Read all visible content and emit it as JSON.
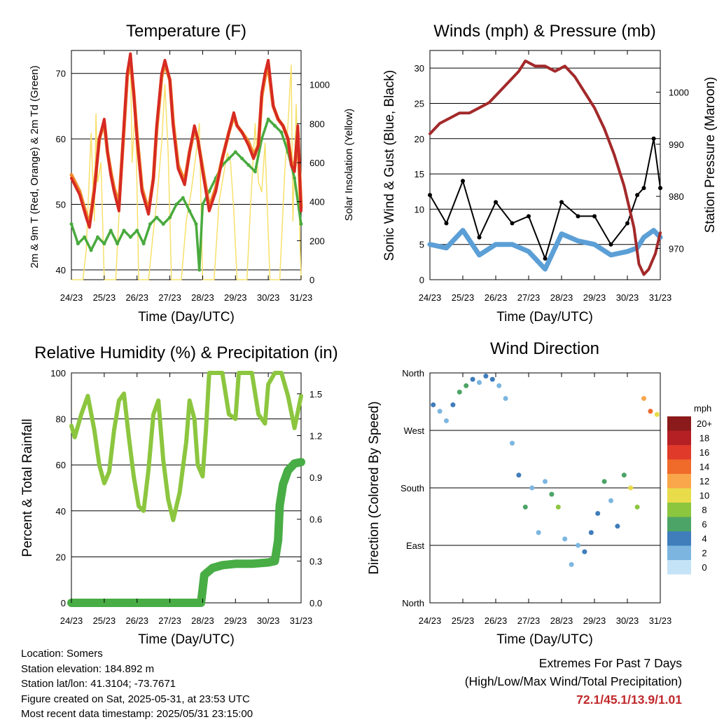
{
  "colors": {
    "temp2m": "#d62a22",
    "temp9m": "#f08a2a",
    "dewpoint": "#49aa3e",
    "solar": "#f7e06a",
    "wind": "#5b9fd6",
    "gust": "#000000",
    "pressure": "#a3292a",
    "rh": "#8cc63f",
    "precip": "#48ad45",
    "extremes": "#c0282b"
  },
  "info": {
    "location": "Location: Somers",
    "elevation": "Station elevation: 184.892 m",
    "latlon": "Station lat/lon: 41.3104; -73.7671",
    "created": "Figure created on Sat, 2025-05-31, at 23:53 UTC",
    "recent": "Most recent data timestamp: 2025/05/31 23:15:00"
  },
  "extremes": {
    "title": "Extremes For Past 7 Days",
    "subtitle": "(High/Low/Max Wind/Total Precipitation)",
    "values": "72.1/45.1/13.9/1.01"
  },
  "chart_data": [
    {
      "type": "line",
      "title": "Temperature (F)",
      "xlabel": "Time (Day/UTC)",
      "ylabel": "2m & 9m T (Red, Orange) & 2m Td (Green)",
      "y2label": "Solar Insolation (Yellow)",
      "xticks": [
        "24/23",
        "25/23",
        "26/23",
        "27/23",
        "28/23",
        "29/23",
        "30/23",
        "31/23"
      ],
      "xlim": [
        0,
        7
      ],
      "ylim": [
        38.5,
        73.5
      ],
      "yticks": [
        40,
        50,
        60,
        70
      ],
      "y2lim": [
        0,
        1175
      ],
      "y2ticks": [
        0,
        200,
        400,
        600,
        800,
        1000
      ],
      "grid": true,
      "series": [
        {
          "key": "temp2m",
          "x": [
            0,
            0.25,
            0.45,
            0.55,
            0.7,
            0.85,
            1.0,
            1.1,
            1.2,
            1.3,
            1.45,
            1.6,
            1.7,
            1.8,
            1.9,
            2.0,
            2.15,
            2.35,
            2.5,
            2.6,
            2.75,
            2.85,
            3.0,
            3.1,
            3.25,
            3.45,
            3.6,
            3.75,
            3.85,
            4.0,
            4.2,
            4.4,
            4.6,
            4.8,
            4.95,
            5.05,
            5.2,
            5.4,
            5.55,
            5.7,
            5.8,
            5.9,
            6.0,
            6.15,
            6.3,
            6.45,
            6.6,
            6.7,
            6.8,
            6.9,
            7.0
          ],
          "y": [
            54,
            51.5,
            48,
            46.5,
            52,
            60,
            63,
            58,
            54.5,
            52,
            49,
            62,
            70,
            73,
            67,
            60,
            52,
            48.5,
            54,
            62,
            70,
            72,
            69,
            62,
            55.5,
            53,
            58,
            62,
            60,
            55,
            49,
            52,
            57,
            61,
            64,
            62,
            61,
            59,
            57,
            59,
            67,
            70,
            72,
            65,
            63,
            62,
            60,
            56,
            55,
            62,
            49
          ]
        },
        {
          "key": "temp9m",
          "x": [
            0,
            0.25,
            0.45,
            0.55,
            0.7,
            0.85,
            1.0,
            1.1,
            1.2,
            1.3,
            1.45,
            1.6,
            1.7,
            1.8,
            1.9,
            2.0,
            2.15,
            2.35,
            2.5,
            2.6,
            2.75,
            2.85,
            3.0,
            3.1,
            3.25,
            3.45,
            3.6,
            3.75,
            3.85,
            4.0,
            4.2,
            4.4,
            4.6,
            4.8,
            4.95,
            5.05,
            5.2,
            5.4,
            5.55,
            5.7,
            5.8,
            5.9,
            6.0,
            6.15,
            6.3,
            6.45,
            6.6,
            6.7,
            6.8,
            6.9,
            7.0
          ],
          "y": [
            54.5,
            52,
            48.5,
            47,
            52.5,
            60,
            62.5,
            58,
            55,
            52.5,
            50,
            61.5,
            69.5,
            72,
            67,
            60.5,
            52.5,
            49,
            54,
            61.5,
            69.5,
            71.5,
            69,
            62.5,
            56,
            53.5,
            58,
            61.5,
            60,
            55.5,
            49.5,
            52.5,
            57,
            61,
            63.5,
            62,
            61,
            59.5,
            57.5,
            59,
            66.5,
            69.5,
            71,
            65,
            63,
            62,
            60,
            56.5,
            55.5,
            61,
            49.5
          ]
        },
        {
          "key": "dewpoint",
          "x": [
            0,
            0.2,
            0.4,
            0.6,
            0.8,
            1.0,
            1.2,
            1.4,
            1.6,
            1.8,
            2.0,
            2.2,
            2.4,
            2.6,
            2.8,
            3.0,
            3.2,
            3.4,
            3.6,
            3.8,
            3.9,
            4.0,
            4.2,
            4.4,
            4.6,
            4.8,
            5.0,
            5.2,
            5.4,
            5.6,
            5.8,
            6.0,
            6.2,
            6.4,
            6.6,
            6.8,
            7.0
          ],
          "y": [
            47,
            44,
            45,
            43,
            45,
            44,
            46,
            44,
            46,
            45,
            46,
            44,
            47,
            48,
            47,
            48,
            50,
            51,
            49,
            47,
            40,
            50,
            52,
            54,
            56,
            57,
            58,
            57,
            56,
            55,
            60,
            63,
            62,
            61,
            58,
            54,
            47
          ]
        },
        {
          "key": "solar",
          "x": [
            0,
            0.35,
            0.45,
            0.6,
            0.7,
            0.75,
            0.8,
            0.9,
            1.0,
            1.35,
            1.5,
            1.6,
            1.7,
            1.8,
            1.85,
            1.95,
            2.05,
            2.35,
            2.5,
            2.6,
            2.75,
            2.85,
            2.95,
            3.05,
            3.35,
            3.5,
            3.65,
            3.8,
            3.9,
            4.0,
            4.35,
            4.5,
            4.6,
            4.75,
            4.85,
            4.95,
            5.05,
            5.35,
            5.45,
            5.6,
            5.7,
            5.8,
            5.9,
            6.05,
            6.35,
            6.5,
            6.6,
            6.7,
            6.75,
            6.85,
            7.0
          ],
          "y": [
            0,
            0,
            150,
            750,
            300,
            850,
            500,
            600,
            0,
            0,
            500,
            800,
            1000,
            1150,
            600,
            900,
            0,
            0,
            250,
            400,
            700,
            1000,
            650,
            0,
            0,
            300,
            450,
            650,
            800,
            0,
            0,
            400,
            500,
            650,
            600,
            350,
            0,
            0,
            350,
            800,
            500,
            450,
            700,
            0,
            0,
            550,
            800,
            1100,
            300,
            900,
            0
          ]
        }
      ]
    },
    {
      "type": "scatter",
      "title": "Winds (mph) & Pressure (mb)",
      "xlabel": "Time (Day/UTC)",
      "ylabel": "Sonic Wind & Gust (Blue, Black)",
      "y2label": "Station Pressure (Maroon)",
      "xticks": [
        "24/23",
        "25/23",
        "26/23",
        "27/23",
        "28/23",
        "29/23",
        "30/23",
        "31/23"
      ],
      "xlim": [
        0,
        7
      ],
      "ylim": [
        0,
        32.5
      ],
      "yticks": [
        0,
        5,
        10,
        15,
        20,
        25,
        30
      ],
      "y2lim": [
        964,
        1008
      ],
      "y2ticks": [
        970,
        980,
        990,
        1000
      ],
      "grid": true,
      "series": [
        {
          "key": "wind",
          "x": [
            0,
            0.5,
            1.0,
            1.5,
            2.0,
            2.5,
            3.0,
            3.5,
            4.0,
            4.5,
            5.0,
            5.5,
            6.0,
            6.3,
            6.5,
            6.8,
            7.0
          ],
          "y": [
            5,
            4.5,
            7,
            3.5,
            5,
            5,
            4,
            1.5,
            6.5,
            5.5,
            5,
            3.5,
            4,
            4.5,
            6,
            7,
            6
          ]
        },
        {
          "key": "gust",
          "x": [
            0,
            0.5,
            1.0,
            1.5,
            2.0,
            2.5,
            3.0,
            3.5,
            4.0,
            4.5,
            5.0,
            5.5,
            6.0,
            6.3,
            6.5,
            6.8,
            7.0
          ],
          "y": [
            12,
            8,
            14,
            6,
            11,
            8,
            9,
            3,
            11,
            9,
            9,
            5,
            8,
            12,
            13,
            20,
            13
          ]
        },
        {
          "key": "pressure",
          "x": [
            0,
            0.3,
            0.6,
            0.9,
            1.2,
            1.5,
            1.8,
            2.1,
            2.4,
            2.7,
            2.9,
            3.2,
            3.5,
            3.8,
            4.1,
            4.4,
            4.7,
            5.0,
            5.3,
            5.6,
            5.9,
            6.2,
            6.35,
            6.5,
            6.65,
            6.85,
            7.0
          ],
          "y": [
            992,
            994,
            995,
            996,
            996,
            997,
            998,
            1000,
            1002,
            1004,
            1006,
            1005,
            1005,
            1004,
            1005,
            1003,
            1000,
            997,
            993,
            988,
            982,
            974,
            967,
            965,
            966,
            969,
            973
          ]
        }
      ]
    },
    {
      "type": "line",
      "title": "Relative Humidity (%) & Precipitation (in)",
      "xlabel": "Time (Day/UTC)",
      "ylabel": "Percent & Total Rainfall",
      "y2label": "",
      "xticks": [
        "24/23",
        "25/23",
        "26/23",
        "27/23",
        "28/23",
        "29/23",
        "30/23",
        "31/23"
      ],
      "xlim": [
        0,
        7
      ],
      "ylim": [
        0,
        100
      ],
      "yticks": [
        0,
        20,
        40,
        60,
        80,
        100
      ],
      "y2lim": [
        0,
        1.65
      ],
      "y2ticks": [
        0.0,
        0.3,
        0.6,
        0.9,
        1.2,
        1.5
      ],
      "grid": true,
      "series": [
        {
          "key": "rh",
          "x": [
            0,
            0.1,
            0.3,
            0.5,
            0.7,
            0.85,
            1.0,
            1.15,
            1.3,
            1.45,
            1.6,
            1.75,
            1.9,
            2.05,
            2.2,
            2.35,
            2.5,
            2.65,
            2.8,
            2.95,
            3.1,
            3.3,
            3.5,
            3.6,
            3.75,
            3.85,
            4.0,
            4.1,
            4.2,
            4.4,
            4.6,
            4.8,
            5.0,
            5.1,
            5.3,
            5.5,
            5.7,
            5.9,
            6.0,
            6.2,
            6.4,
            6.6,
            6.8,
            7.0
          ],
          "y": [
            77,
            72,
            82,
            90,
            75,
            60,
            52,
            57,
            75,
            88,
            91,
            72,
            55,
            42,
            40,
            58,
            82,
            88,
            62,
            45,
            36,
            48,
            70,
            88,
            80,
            60,
            55,
            75,
            100,
            100,
            100,
            82,
            80,
            100,
            100,
            100,
            82,
            78,
            95,
            100,
            100,
            90,
            76,
            90
          ]
        },
        {
          "key": "precip",
          "x": [
            0,
            1,
            2,
            3,
            3.95,
            4.05,
            4.3,
            4.6,
            5,
            5.5,
            6.0,
            6.2,
            6.3,
            6.35,
            6.45,
            6.6,
            6.8,
            7.0
          ],
          "y": [
            0,
            0,
            0,
            0,
            0,
            0.2,
            0.25,
            0.27,
            0.28,
            0.28,
            0.29,
            0.3,
            0.45,
            0.7,
            0.85,
            0.95,
            1.0,
            1.01
          ]
        }
      ]
    },
    {
      "type": "scatter",
      "title": "Wind Direction",
      "xlabel": "Time (Day/UTC)",
      "ylabel": "Direction (Colored By Speed)",
      "xticks": [
        "24/23",
        "25/23",
        "26/23",
        "27/23",
        "28/23",
        "29/23",
        "30/23",
        "31/23"
      ],
      "yticks": [
        "North",
        "East",
        "South",
        "West",
        "North"
      ],
      "xlim": [
        0,
        7
      ],
      "ylim": [
        0,
        360
      ],
      "grid": true,
      "legend_title": "mph",
      "legend_labels": [
        "20+",
        "18",
        "16",
        "14",
        "12",
        "10",
        "8",
        "6",
        "4",
        "2",
        "0"
      ],
      "legend_colors": [
        "#8b1a1a",
        "#b52025",
        "#e03a2a",
        "#f06a2a",
        "#f9a64a",
        "#e9dc4a",
        "#8cc63f",
        "#4ca466",
        "#3f7dbb",
        "#7cb6e0",
        "#c5e3f6"
      ],
      "series": [
        {
          "name": "direction",
          "x": [
            0.1,
            0.3,
            0.5,
            0.7,
            0.9,
            1.1,
            1.3,
            1.5,
            1.7,
            1.9,
            2.1,
            2.3,
            2.5,
            2.7,
            2.9,
            3.1,
            3.3,
            3.5,
            3.7,
            3.9,
            4.1,
            4.3,
            4.5,
            4.7,
            4.9,
            5.1,
            5.3,
            5.5,
            5.7,
            5.9,
            6.1,
            6.3,
            6.5,
            6.7,
            6.9
          ],
          "y": [
            310,
            300,
            285,
            310,
            330,
            340,
            350,
            345,
            355,
            350,
            340,
            320,
            250,
            200,
            150,
            180,
            110,
            190,
            170,
            150,
            100,
            60,
            90,
            80,
            110,
            140,
            190,
            160,
            120,
            200,
            180,
            150,
            320,
            300,
            295
          ],
          "speed": [
            3,
            2,
            2,
            4,
            6,
            5,
            3,
            2,
            4,
            3,
            2,
            2,
            2,
            3,
            6,
            2,
            1,
            2,
            5,
            8,
            1,
            1,
            2,
            3,
            3,
            4,
            6,
            2,
            3,
            6,
            9,
            8,
            12,
            13,
            10
          ]
        }
      ]
    }
  ]
}
